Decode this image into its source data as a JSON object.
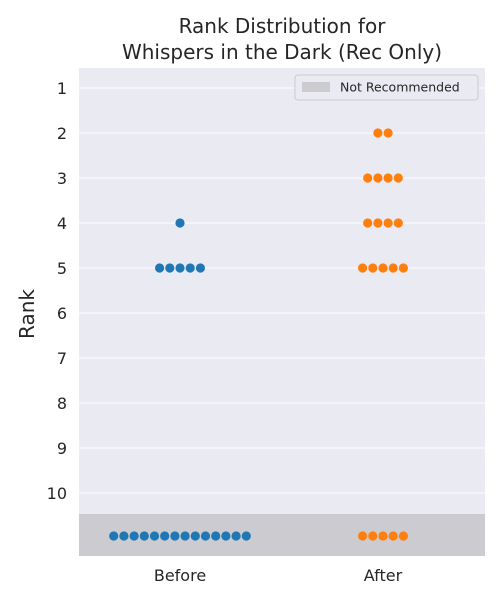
{
  "chart_data": {
    "type": "scatter",
    "title_lines": [
      "Rank Distribution for",
      "Whispers in the Dark (Rec Only)"
    ],
    "ylabel": "Rank",
    "xlabel": "",
    "categories": [
      "Before",
      "After"
    ],
    "y_ticks": [
      "1",
      "2",
      "3",
      "4",
      "5",
      "6",
      "7",
      "8",
      "9",
      "10"
    ],
    "not_recommended_label": "Not Recommended",
    "legend_position": "upper-right",
    "grid": true,
    "series": [
      {
        "color": "#1f77b4",
        "points": [
          {
            "rank": 4,
            "count": 1
          },
          {
            "rank": 5,
            "count": 5
          },
          {
            "rank": "Not Recommended",
            "count": 14
          }
        ]
      },
      {
        "color": "#ff7f0e",
        "points": [
          {
            "rank": 2,
            "count": 2
          },
          {
            "rank": 3,
            "count": 4
          },
          {
            "rank": 4,
            "count": 4
          },
          {
            "rank": 5,
            "count": 5
          },
          {
            "rank": "Not Recommended",
            "count": 5
          }
        ]
      }
    ],
    "colors": {
      "plot_background": "#eaeaf2",
      "grid": "#ffffff",
      "not_recommended_band": "#cbcbd0"
    }
  }
}
